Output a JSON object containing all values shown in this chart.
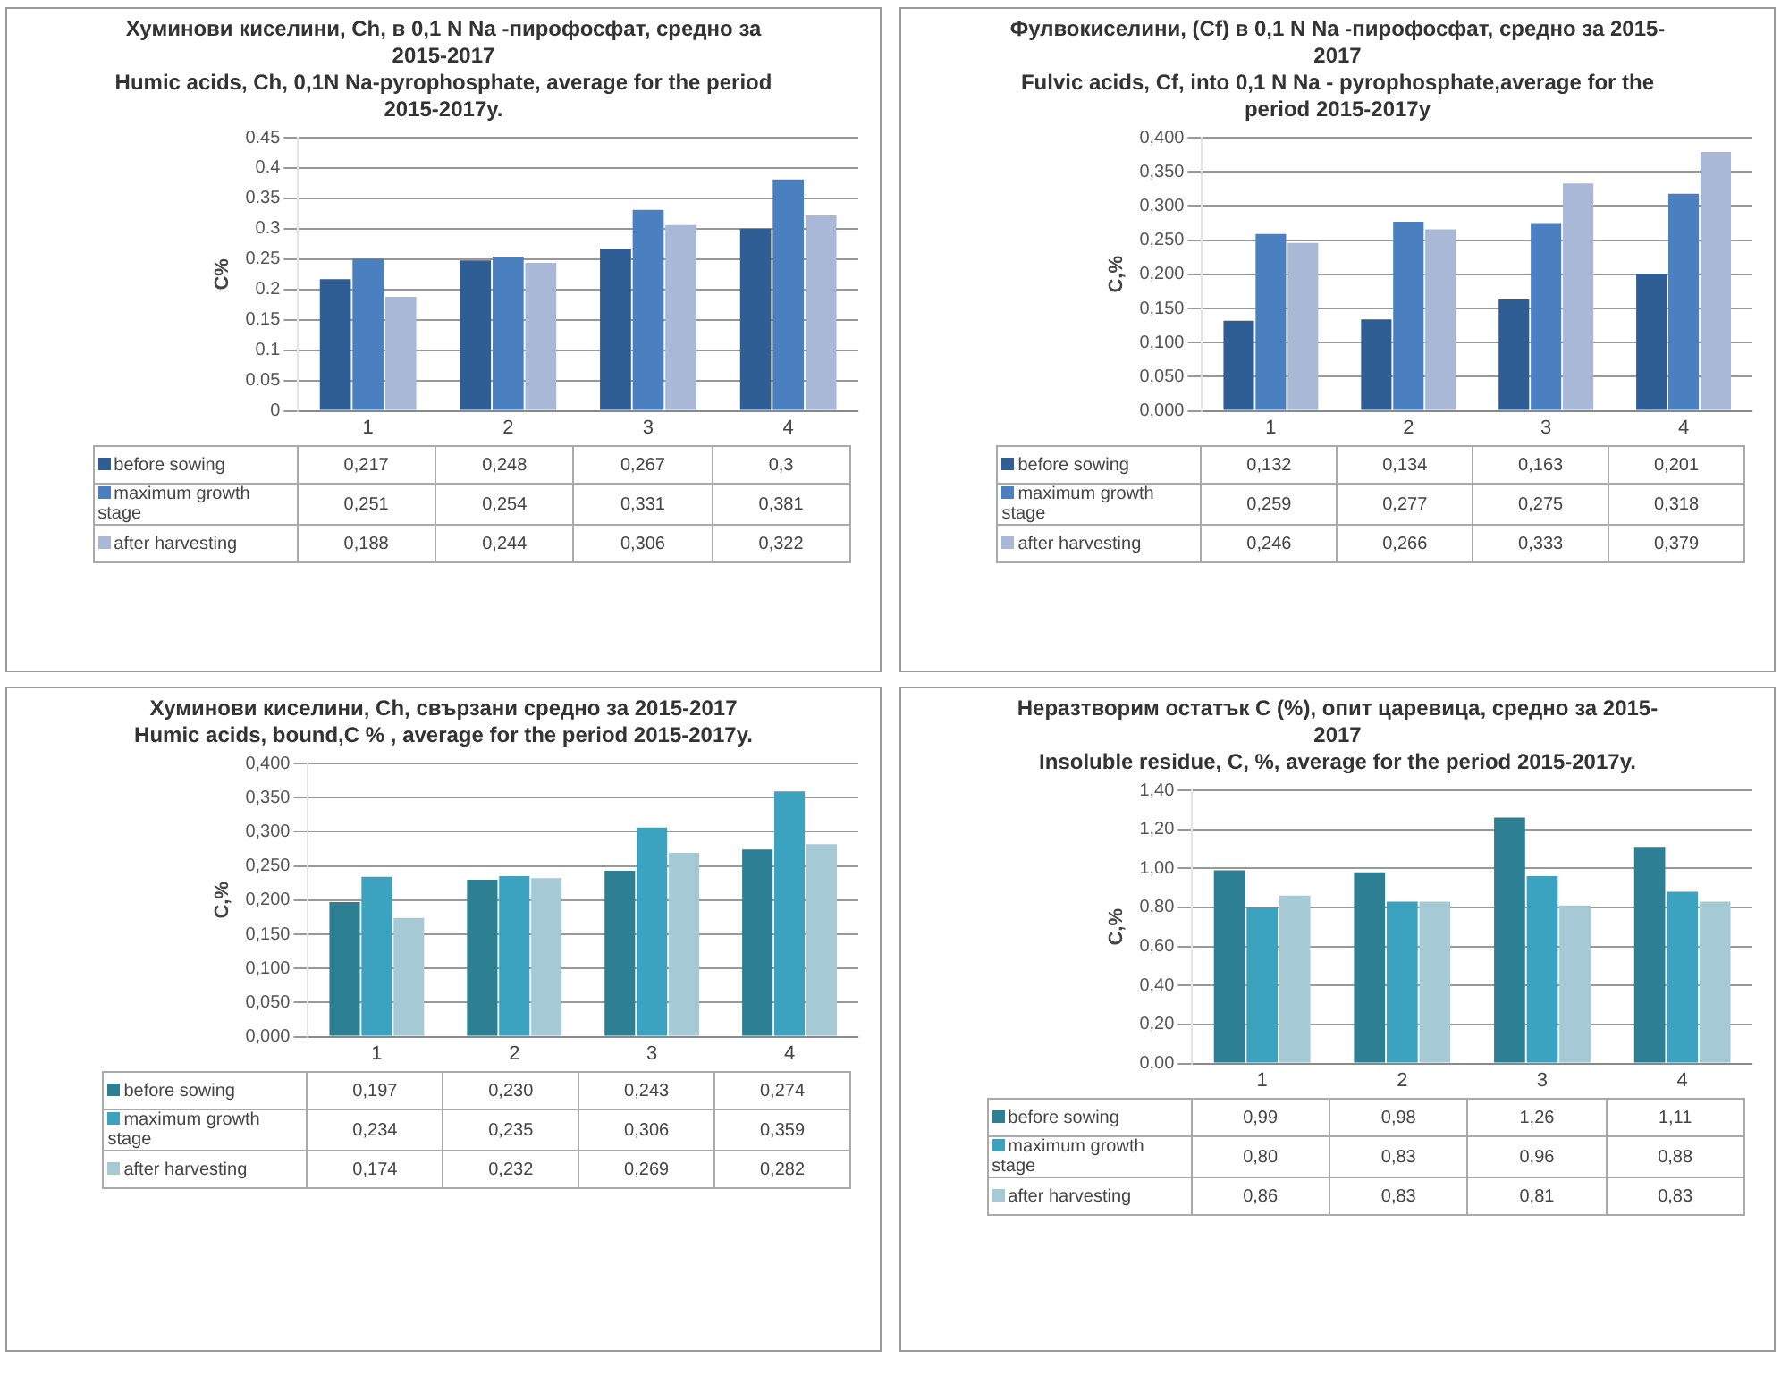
{
  "chart_data": [
    {
      "type": "bar",
      "title": "Хуминови киселини, Ch, в 0,1 N  Na -пирофосфат, средно за 2015-2017",
      "subtitle": "Humic acids, Ch, 0,1N Na-pyrophosphate, average for the period 2015-2017y.",
      "ylabel": "C%",
      "categories": [
        "1",
        "2",
        "3",
        "4"
      ],
      "ylim": [
        0,
        0.45
      ],
      "yticks": [
        0,
        0.05,
        0.1,
        0.15,
        0.2,
        0.25,
        0.3,
        0.35,
        0.4,
        0.45
      ],
      "grid": "y",
      "legend": "bottom",
      "series": [
        {
          "name": "before sowing",
          "color": "#2e5e94",
          "values": [
            0.217,
            0.248,
            0.267,
            0.3
          ],
          "value_labels": [
            "0,217",
            "0,248",
            "0,267",
            "0,3"
          ]
        },
        {
          "name": "maximum growth stage",
          "color": "#4a7fc0",
          "values": [
            0.251,
            0.254,
            0.331,
            0.381
          ],
          "value_labels": [
            "0,251",
            "0,254",
            "0,331",
            "0,381"
          ]
        },
        {
          "name": "after harvesting",
          "color": "#a9b8d6",
          "values": [
            0.188,
            0.244,
            0.306,
            0.322
          ],
          "value_labels": [
            "0,188",
            "0,244",
            "0,306",
            "0,322"
          ]
        }
      ]
    },
    {
      "type": "bar",
      "title": "Фулвокиселини, (Cf)  в 0,1 N Na -пирофосфат, средно за 2015-2017",
      "subtitle": "Fulvic acids, Cf, into 0,1 N Na  - pyrophosphate,average for the period 2015-2017y",
      "ylabel": "C,%",
      "categories": [
        "1",
        "2",
        "3",
        "4"
      ],
      "ylim": [
        0,
        0.4
      ],
      "yticks": [
        {
          "value": 0,
          "label": "0,000"
        },
        {
          "value": 0.05,
          "label": "0,050"
        },
        {
          "value": 0.1,
          "label": "0,100"
        },
        {
          "value": 0.15,
          "label": "0,150"
        },
        {
          "value": 0.2,
          "label": "0,200"
        },
        {
          "value": 0.25,
          "label": "0,250"
        },
        {
          "value": 0.3,
          "label": "0,300"
        },
        {
          "value": 0.35,
          "label": "0,350"
        },
        {
          "value": 0.4,
          "label": "0,400"
        }
      ],
      "grid": "y",
      "legend": "bottom",
      "series": [
        {
          "name": "before sowing",
          "color": "#2e5e94",
          "values": [
            0.132,
            0.134,
            0.163,
            0.201
          ],
          "value_labels": [
            "0,132",
            "0,134",
            "0,163",
            "0,201"
          ]
        },
        {
          "name": "maximum growth stage",
          "color": "#4a7fc0",
          "values": [
            0.259,
            0.277,
            0.275,
            0.318
          ],
          "value_labels": [
            "0,259",
            "0,277",
            "0,275",
            "0,318"
          ]
        },
        {
          "name": "after harvesting",
          "color": "#a9b8d6",
          "values": [
            0.246,
            0.266,
            0.333,
            0.379
          ],
          "value_labels": [
            "0,246",
            "0,266",
            "0,333",
            "0,379"
          ]
        }
      ]
    },
    {
      "type": "bar",
      "title": "Хуминови киселини, Ch, свързани средно за 2015-2017",
      "subtitle": "Humic acids, bound,C % , average for the period 2015-2017y.",
      "ylabel": "C,%",
      "categories": [
        "1",
        "2",
        "3",
        "4"
      ],
      "ylim": [
        0,
        0.4
      ],
      "yticks": [
        {
          "value": 0,
          "label": "0,000"
        },
        {
          "value": 0.05,
          "label": "0,050"
        },
        {
          "value": 0.1,
          "label": "0,100"
        },
        {
          "value": 0.15,
          "label": "0,150"
        },
        {
          "value": 0.2,
          "label": "0,200"
        },
        {
          "value": 0.25,
          "label": "0,250"
        },
        {
          "value": 0.3,
          "label": "0,300"
        },
        {
          "value": 0.35,
          "label": "0,350"
        },
        {
          "value": 0.4,
          "label": "0,400"
        }
      ],
      "grid": "y",
      "legend": "bottom",
      "series": [
        {
          "name": "before sowing",
          "color": "#2d7f93",
          "values": [
            0.197,
            0.23,
            0.243,
            0.274
          ],
          "value_labels": [
            "0,197",
            "0,230",
            "0,243",
            "0,274"
          ]
        },
        {
          "name": "maximum growth stage",
          "color": "#3ba2c0",
          "values": [
            0.234,
            0.235,
            0.306,
            0.359
          ],
          "value_labels": [
            "0,234",
            "0,235",
            "0,306",
            "0,359"
          ]
        },
        {
          "name": "after harvesting",
          "color": "#a6c9d6",
          "values": [
            0.174,
            0.232,
            0.269,
            0.282
          ],
          "value_labels": [
            "0,174",
            "0,232",
            "0,269",
            "0,282"
          ]
        }
      ]
    },
    {
      "type": "bar",
      "title": "Неразтворим остатък С (%), опит царевица, средно за 2015-2017",
      "subtitle": "Insoluble residue, C, %, average for the period 2015-2017y.",
      "ylabel": "C,%",
      "categories": [
        "1",
        "2",
        "3",
        "4"
      ],
      "ylim": [
        0,
        1.4
      ],
      "yticks": [
        {
          "value": 0,
          "label": "0,00"
        },
        {
          "value": 0.2,
          "label": "0,20"
        },
        {
          "value": 0.4,
          "label": "0,40"
        },
        {
          "value": 0.6,
          "label": "0,60"
        },
        {
          "value": 0.8,
          "label": "0,80"
        },
        {
          "value": 1,
          "label": "1,00"
        },
        {
          "value": 1.2,
          "label": "1,20"
        },
        {
          "value": 1.4,
          "label": "1,40"
        }
      ],
      "grid": "y",
      "legend": "bottom",
      "series": [
        {
          "name": "before sowing",
          "color": "#2d7f93",
          "values": [
            0.99,
            0.98,
            1.26,
            1.11
          ],
          "value_labels": [
            "0,99",
            "0,98",
            "1,26",
            "1,11"
          ]
        },
        {
          "name": "maximum growth stage",
          "color": "#3ba2c0",
          "values": [
            0.8,
            0.83,
            0.96,
            0.88
          ],
          "value_labels": [
            "0,80",
            "0,83",
            "0,96",
            "0,88"
          ]
        },
        {
          "name": "after harvesting",
          "color": "#a6c9d6",
          "values": [
            0.86,
            0.83,
            0.81,
            0.83
          ],
          "value_labels": [
            "0,86",
            "0,83",
            "0,81",
            "0,83"
          ]
        }
      ]
    }
  ]
}
